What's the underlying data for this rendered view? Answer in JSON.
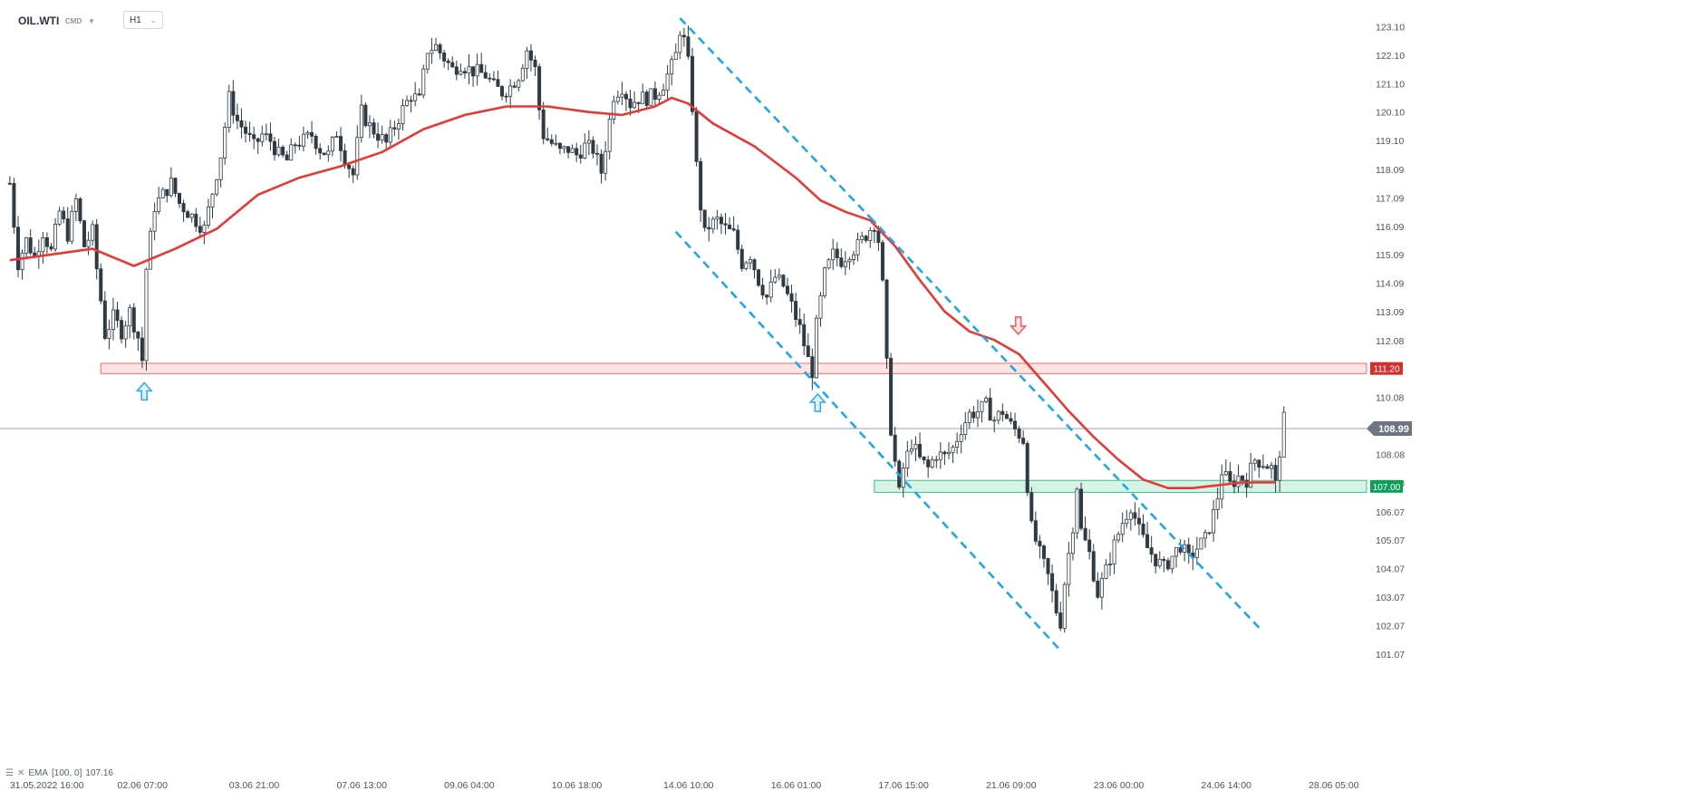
{
  "header": {
    "symbol": "OIL.WTI",
    "market": "CMD",
    "timeframe": "H1"
  },
  "indicator": {
    "label": "EMA",
    "params": "[100, 0]",
    "value": "107.16"
  },
  "icons": {
    "dropdown": "chevron-down-icon",
    "settings": "list-icon",
    "close": "close-icon"
  },
  "colors": {
    "ema": "#e53935",
    "channel": "#1ea7e4",
    "resistance_fill": "#fde4e4",
    "resistance_edge": "#ef6b6b",
    "support_fill": "#d7f3e6",
    "support_edge": "#3bbf8a",
    "price_line": "#9aa3ad",
    "candle": "#2e3a44",
    "arrow_up": "#36a9f2",
    "arrow_down": "#f06060",
    "badge_red": "#d32f2f",
    "badge_green": "#0f9d58",
    "badge_gray": "#6b7680"
  },
  "chart_data": {
    "type": "candlestick",
    "symbol": "OIL.WTI",
    "interval": "H1",
    "ylim": [
      101.07,
      123.4
    ],
    "y_ticks": [
      101.07,
      102.07,
      103.07,
      104.07,
      105.07,
      106.07,
      107.08,
      108.08,
      109.08,
      110.08,
      111.08,
      112.08,
      113.09,
      114.09,
      115.09,
      116.09,
      117.09,
      118.09,
      119.1,
      120.1,
      121.1,
      122.1,
      123.1
    ],
    "y_tick_labels": [
      "101.07",
      "102.07",
      "103.07",
      "104.07",
      "105.07",
      "106.07",
      "107.08",
      "108.08",
      "109.08",
      "110.08",
      "111.08",
      "112.08",
      "113.09",
      "114.09",
      "115.09",
      "116.09",
      "117.09",
      "118.09",
      "119.10",
      "120.10",
      "121.10",
      "122.10",
      "123.10"
    ],
    "x_labels": [
      {
        "label": "31.05.2022  16:00",
        "t": 0
      },
      {
        "label": "02.06  07:00",
        "t": 26
      },
      {
        "label": "03.06  21:00",
        "t": 53
      },
      {
        "label": "07.06  13:00",
        "t": 79
      },
      {
        "label": "09.06  04:00",
        "t": 105
      },
      {
        "label": "10.06  18:00",
        "t": 131
      },
      {
        "label": "14.06  10:00",
        "t": 158
      },
      {
        "label": "16.06  01:00",
        "t": 184
      },
      {
        "label": "17.06  15:00",
        "t": 210
      },
      {
        "label": "21.06  09:00",
        "t": 236
      },
      {
        "label": "23.06  00:00",
        "t": 262
      },
      {
        "label": "24.06  14:00",
        "t": 288
      },
      {
        "label": "28.06  05:00",
        "t": 314
      }
    ],
    "t_range": [
      -1.5,
      328
    ],
    "close_path": [
      [
        0,
        117.6
      ],
      [
        1,
        116.2
      ],
      [
        2,
        114.8
      ],
      [
        4,
        115.6
      ],
      [
        6,
        115.0
      ],
      [
        8,
        115.9
      ],
      [
        10,
        115.2
      ],
      [
        12,
        116.6
      ],
      [
        14,
        115.8
      ],
      [
        16,
        117.0
      ],
      [
        18,
        115.4
      ],
      [
        20,
        115.9
      ],
      [
        21,
        114.6
      ],
      [
        22,
        113.5
      ],
      [
        23,
        112.3
      ],
      [
        25,
        112.9
      ],
      [
        27,
        112.4
      ],
      [
        29,
        113.1
      ],
      [
        31,
        112.2
      ],
      [
        32,
        111.4
      ],
      [
        33,
        114.6
      ],
      [
        35,
        116.8
      ],
      [
        37,
        117.2
      ],
      [
        39,
        117.6
      ],
      [
        41,
        116.9
      ],
      [
        43,
        116.6
      ],
      [
        45,
        116.3
      ],
      [
        47,
        116.0
      ],
      [
        49,
        117.3
      ],
      [
        51,
        118.6
      ],
      [
        53,
        120.6
      ],
      [
        55,
        119.8
      ],
      [
        57,
        119.4
      ],
      [
        59,
        118.9
      ],
      [
        61,
        119.3
      ],
      [
        63,
        119.1
      ],
      [
        65,
        118.6
      ],
      [
        67,
        118.4
      ],
      [
        69,
        119.0
      ],
      [
        71,
        119.1
      ],
      [
        73,
        119.3
      ],
      [
        75,
        118.8
      ],
      [
        77,
        118.6
      ],
      [
        79,
        119.4
      ],
      [
        81,
        118.5
      ],
      [
        83,
        117.9
      ],
      [
        85,
        120.1
      ],
      [
        87,
        119.6
      ],
      [
        89,
        119.3
      ],
      [
        91,
        119.0
      ],
      [
        93,
        119.6
      ],
      [
        95,
        120.2
      ],
      [
        97,
        120.7
      ],
      [
        99,
        120.5
      ],
      [
        101,
        122.3
      ],
      [
        103,
        122.4
      ],
      [
        105,
        122.0
      ],
      [
        107,
        121.6
      ],
      [
        109,
        121.8
      ],
      [
        111,
        121.6
      ],
      [
        113,
        121.5
      ],
      [
        115,
        121.4
      ],
      [
        117,
        121.0
      ],
      [
        119,
        120.8
      ],
      [
        121,
        121.0
      ],
      [
        123,
        121.4
      ],
      [
        125,
        122.3
      ],
      [
        127,
        121.6
      ],
      [
        128,
        120.2
      ],
      [
        129,
        119.3
      ],
      [
        131,
        119.0
      ],
      [
        133,
        118.7
      ],
      [
        135,
        118.8
      ],
      [
        137,
        118.6
      ],
      [
        139,
        118.9
      ],
      [
        141,
        118.8
      ],
      [
        142,
        118.4
      ],
      [
        143,
        118.0
      ],
      [
        144,
        118.9
      ],
      [
        146,
        120.7
      ],
      [
        148,
        121.0
      ],
      [
        150,
        120.4
      ],
      [
        152,
        120.6
      ],
      [
        154,
        120.6
      ],
      [
        156,
        120.7
      ],
      [
        158,
        121.1
      ],
      [
        160,
        121.7
      ],
      [
        161,
        122.1
      ],
      [
        162,
        123.0
      ],
      [
        163,
        122.6
      ],
      [
        164,
        121.8
      ],
      [
        165,
        120.3
      ],
      [
        166,
        118.2
      ],
      [
        167,
        116.8
      ],
      [
        168,
        115.8
      ],
      [
        169,
        116.1
      ],
      [
        171,
        116.3
      ],
      [
        173,
        116.0
      ],
      [
        175,
        115.8
      ],
      [
        177,
        114.8
      ],
      [
        179,
        115.1
      ],
      [
        181,
        114.2
      ],
      [
        183,
        113.6
      ],
      [
        185,
        114.3
      ],
      [
        187,
        114.0
      ],
      [
        189,
        113.3
      ],
      [
        191,
        112.5
      ],
      [
        193,
        111.4
      ],
      [
        194,
        111.0
      ],
      [
        195,
        112.6
      ],
      [
        197,
        114.4
      ],
      [
        199,
        115.1
      ],
      [
        201,
        114.9
      ],
      [
        203,
        115.2
      ],
      [
        205,
        115.4
      ],
      [
        207,
        115.8
      ],
      [
        209,
        116.2
      ],
      [
        210,
        115.6
      ],
      [
        211,
        114.0
      ],
      [
        212,
        111.2
      ],
      [
        213,
        109.0
      ],
      [
        214,
        107.8
      ],
      [
        215,
        106.7
      ],
      [
        216,
        107.6
      ],
      [
        218,
        108.5
      ],
      [
        220,
        107.9
      ],
      [
        222,
        107.6
      ],
      [
        224,
        108.1
      ],
      [
        226,
        108.0
      ],
      [
        228,
        108.3
      ],
      [
        230,
        109.0
      ],
      [
        232,
        109.5
      ],
      [
        234,
        109.6
      ],
      [
        236,
        109.8
      ],
      [
        238,
        109.3
      ],
      [
        240,
        109.6
      ],
      [
        242,
        109.1
      ],
      [
        244,
        108.8
      ],
      [
        245,
        108.6
      ],
      [
        246,
        107.0
      ],
      [
        247,
        105.5
      ],
      [
        249,
        104.6
      ],
      [
        251,
        103.8
      ],
      [
        253,
        102.6
      ],
      [
        254,
        102.2
      ],
      [
        255,
        103.6
      ],
      [
        257,
        105.6
      ],
      [
        258,
        107.0
      ],
      [
        259,
        105.4
      ],
      [
        261,
        104.6
      ],
      [
        263,
        103.2
      ],
      [
        265,
        104.0
      ],
      [
        267,
        104.9
      ],
      [
        269,
        105.7
      ],
      [
        271,
        106.3
      ],
      [
        273,
        105.4
      ],
      [
        275,
        104.8
      ],
      [
        277,
        104.4
      ],
      [
        279,
        104.1
      ],
      [
        281,
        104.5
      ],
      [
        283,
        104.9
      ],
      [
        285,
        104.4
      ],
      [
        287,
        104.8
      ],
      [
        289,
        105.1
      ],
      [
        291,
        106.0
      ],
      [
        292,
        106.6
      ],
      [
        293,
        107.5
      ],
      [
        295,
        107.0
      ],
      [
        297,
        107.3
      ],
      [
        299,
        107.2
      ],
      [
        301,
        107.9
      ],
      [
        303,
        107.8
      ],
      [
        305,
        107.6
      ],
      [
        306,
        107.0
      ],
      [
        307,
        108.2
      ],
      [
        308,
        109.3
      ]
    ],
    "ema_name": "EMA [100, 0]",
    "ema": [
      [
        0,
        114.9
      ],
      [
        10,
        115.1
      ],
      [
        20,
        115.3
      ],
      [
        30,
        114.7
      ],
      [
        40,
        115.3
      ],
      [
        50,
        116.0
      ],
      [
        60,
        117.2
      ],
      [
        70,
        117.8
      ],
      [
        80,
        118.2
      ],
      [
        90,
        118.7
      ],
      [
        100,
        119.5
      ],
      [
        110,
        120.0
      ],
      [
        120,
        120.3
      ],
      [
        130,
        120.3
      ],
      [
        140,
        120.1
      ],
      [
        148,
        120.0
      ],
      [
        156,
        120.3
      ],
      [
        160,
        120.6
      ],
      [
        164,
        120.4
      ],
      [
        170,
        119.7
      ],
      [
        180,
        118.9
      ],
      [
        190,
        117.8
      ],
      [
        196,
        117.0
      ],
      [
        202,
        116.6
      ],
      [
        208,
        116.3
      ],
      [
        214,
        115.4
      ],
      [
        220,
        114.2
      ],
      [
        226,
        113.1
      ],
      [
        232,
        112.4
      ],
      [
        238,
        112.1
      ],
      [
        244,
        111.6
      ],
      [
        250,
        110.6
      ],
      [
        256,
        109.6
      ],
      [
        262,
        108.7
      ],
      [
        268,
        107.9
      ],
      [
        274,
        107.2
      ],
      [
        280,
        106.9
      ],
      [
        286,
        106.9
      ],
      [
        292,
        107.0
      ],
      [
        298,
        107.1
      ],
      [
        306,
        107.1
      ]
    ],
    "channel_lines": [
      {
        "t1": 162,
        "y1": 123.4,
        "t2": 208,
        "y2": 116.4
      },
      {
        "t1": 208,
        "y1": 116.4,
        "t2": 302,
        "y2": 102.0
      },
      {
        "t1": 161,
        "y1": 115.9,
        "t2": 254,
        "y2": 101.2
      }
    ],
    "resistance_zone": {
      "y_low": 110.92,
      "y_high": 111.28,
      "t_start": 22,
      "label": "111.20"
    },
    "support_zone": {
      "y_low": 106.75,
      "y_high": 107.17,
      "t_start": 209,
      "label": "107.00"
    },
    "current_price": {
      "value": 108.99,
      "label": "108.99"
    },
    "arrows": [
      {
        "t": 32.5,
        "y": 110.6,
        "dir": "up"
      },
      {
        "t": 195.3,
        "y": 110.2,
        "dir": "up"
      },
      {
        "t": 243.8,
        "y": 112.3,
        "dir": "down"
      }
    ],
    "grid": false
  }
}
